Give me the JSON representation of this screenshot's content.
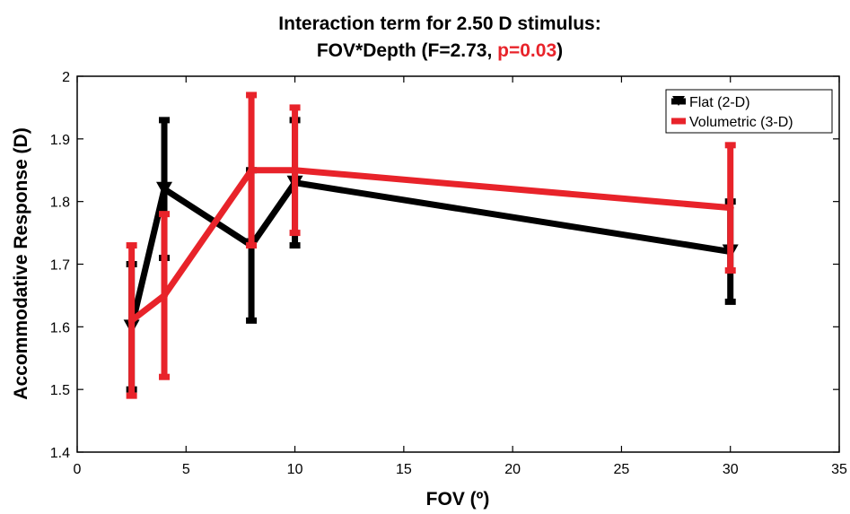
{
  "title": {
    "line1": "Interaction term for 2.50 D stimulus:",
    "line2_prefix": "FOV*Depth (F=2.73, ",
    "line2_highlight": "p=0.03",
    "line2_suffix": ")",
    "highlight_color": "#e8232a"
  },
  "chart_data": {
    "type": "line",
    "title": "Interaction term for 2.50 D stimulus: FOV*Depth (F=2.73, p=0.03)",
    "xlabel": "FOV (º)",
    "ylabel": "Accommodative Response (D)",
    "xlim": [
      0,
      35
    ],
    "ylim": [
      1.4,
      2.0
    ],
    "xticks": [
      0,
      5,
      10,
      15,
      20,
      25,
      30,
      35
    ],
    "yticks": [
      1.4,
      1.5,
      1.6,
      1.7,
      1.8,
      1.9,
      2.0
    ],
    "xtick_labels": [
      "0",
      "5",
      "10",
      "15",
      "20",
      "25",
      "30",
      "35"
    ],
    "ytick_labels": [
      "1.4",
      "1.5",
      "1.6",
      "1.7",
      "1.8",
      "1.9",
      "2"
    ],
    "grid": false,
    "legend_position": "top-right",
    "series": [
      {
        "name": "Flat (2-D)",
        "color": "#000000",
        "marker": "triangle-down",
        "x": [
          2.5,
          4,
          8,
          10,
          30
        ],
        "y": [
          1.6,
          1.82,
          1.73,
          1.83,
          1.72
        ],
        "err_low": [
          1.5,
          1.71,
          1.61,
          1.73,
          1.64
        ],
        "err_high": [
          1.7,
          1.93,
          1.85,
          1.93,
          1.8
        ]
      },
      {
        "name": "Volumetric (3-D)",
        "color": "#e8232a",
        "marker": "circle",
        "x": [
          2.5,
          4,
          8,
          10,
          30
        ],
        "y": [
          1.61,
          1.65,
          1.85,
          1.85,
          1.79
        ],
        "err_low": [
          1.49,
          1.52,
          1.73,
          1.75,
          1.69
        ],
        "err_high": [
          1.73,
          1.78,
          1.97,
          1.95,
          1.89
        ]
      }
    ]
  }
}
